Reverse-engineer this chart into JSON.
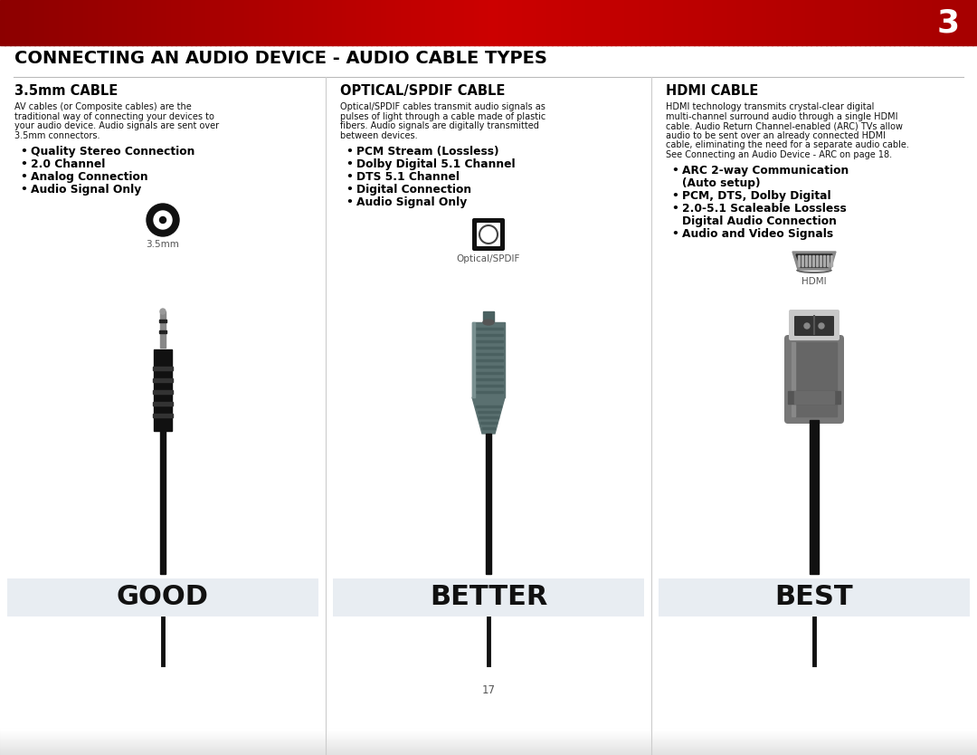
{
  "page_number": "3",
  "header_bg_color": "#aa0000",
  "header_text_color": "#ffffff",
  "main_title": "CONNECTING AN AUDIO DEVICE - AUDIO CABLE TYPES",
  "background_color": "#ffffff",
  "columns": [
    {
      "title": "3.5mm CABLE",
      "description": "AV cables (or Composite cables) are the\ntraditional way of connecting your devices to\nyour audio device. Audio signals are sent over\n3.5mm connectors.",
      "bullets": [
        "Quality Stereo Connection",
        "2.0 Channel",
        "Analog Connection",
        "Audio Signal Only"
      ],
      "icon_label": "3.5mm",
      "rating": "GOOD",
      "rating_bg": "#e8edf2"
    },
    {
      "title": "OPTICAL/SPDIF CABLE",
      "description": "Optical/SPDIF cables transmit audio signals as\npulses of light through a cable made of plastic\nfibers. Audio signals are digitally transmitted\nbetween devices.",
      "bullets": [
        "PCM Stream (Lossless)",
        "Dolby Digital 5.1 Channel",
        "DTS 5.1 Channel",
        "Digital Connection",
        "Audio Signal Only"
      ],
      "icon_label": "Optical/SPDIF",
      "rating": "BETTER",
      "rating_bg": "#e8edf2"
    },
    {
      "title": "HDMI CABLE",
      "description": "HDMI technology transmits crystal-clear digital\nmulti-channel surround audio through a single HDMI\ncable. Audio Return Channel-enabled (ARC) TVs allow\naudio to be sent over an already connected HDMI\ncable, eliminating the need for a separate audio cable.\nSee Connecting an Audio Device - ARC on page 18.",
      "bullets": [
        "ARC 2-way Communication\n(Auto setup)",
        "PCM, DTS, Dolby Digital",
        "2.0-5.1 Scaleable Lossless\nDigital Audio Connection",
        "Audio and Video Signals"
      ],
      "icon_label": "HDMI",
      "rating": "BEST",
      "rating_bg": "#e8edf2"
    }
  ],
  "page_num_text": "17",
  "col_divider_color": "#cccccc",
  "title_color": "#000000"
}
